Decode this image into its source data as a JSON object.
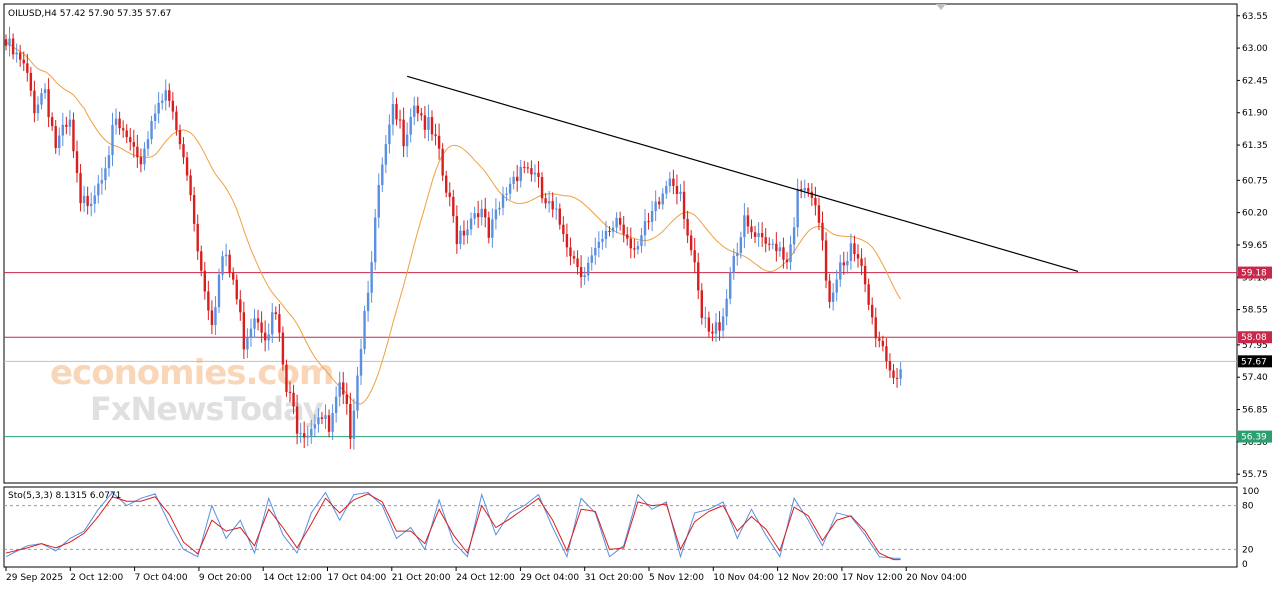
{
  "header": {
    "symbol_line": "OILUSD,H4  57.42 57.90 57.35 57.67"
  },
  "watermark": {
    "line1": "economies.com",
    "line2": "FxNewsToday"
  },
  "stochastic": {
    "label": "Sto(5,3,3) 8.1315 6.0771",
    "levels": [
      "100",
      "80",
      "20",
      "0"
    ]
  },
  "colors": {
    "bull": "#5b8fe0",
    "bear": "#d91e1e",
    "ma": "#f0a040",
    "trendline": "#000000",
    "resistance": "#c8284a",
    "support": "#2aa070",
    "stoch_main": "#5b8fe0",
    "stoch_signal": "#d91e1e",
    "current_price_tag": "#000000"
  },
  "chart_data": {
    "type": "candlestick",
    "symbol": "OILUSD",
    "timeframe": "H4",
    "price_axis": {
      "ticks": [
        "63.55",
        "63.00",
        "62.45",
        "61.90",
        "61.35",
        "60.75",
        "60.20",
        "59.65",
        "59.10",
        "58.55",
        "57.95",
        "57.40",
        "56.85",
        "56.30",
        "55.75"
      ],
      "ylim": [
        55.6,
        63.75
      ]
    },
    "time_axis": {
      "labels": [
        "29 Sep 2025",
        "2 Oct 12:00",
        "7 Oct 04:00",
        "9 Oct 20:00",
        "14 Oct 12:00",
        "17 Oct 04:00",
        "21 Oct 20:00",
        "24 Oct 12:00",
        "29 Oct 04:00",
        "31 Oct 20:00",
        "5 Nov 12:00",
        "10 Nov 04:00",
        "12 Nov 20:00",
        "17 Nov 12:00",
        "20 Nov 04:00"
      ]
    },
    "horizontal_lines": [
      {
        "price": 59.18,
        "label": "59.18",
        "role": "resistance"
      },
      {
        "price": 58.08,
        "label": "58.08",
        "role": "resistance"
      },
      {
        "price": 57.67,
        "label": "57.67",
        "role": "current"
      },
      {
        "price": 56.39,
        "label": "56.39",
        "role": "support"
      }
    ],
    "trendline": {
      "from": {
        "bar": 113,
        "price": 62.52
      },
      "to": {
        "bar": 302,
        "price": 59.2
      }
    },
    "close_path": [
      [
        0,
        63.1
      ],
      [
        5,
        62.7
      ],
      [
        8,
        62.1
      ],
      [
        11,
        62.4
      ],
      [
        14,
        61.4
      ],
      [
        18,
        61.7
      ],
      [
        21,
        60.3
      ],
      [
        25,
        60.7
      ],
      [
        28,
        61.2
      ],
      [
        31,
        61.7
      ],
      [
        34,
        61.5
      ],
      [
        37,
        61.0
      ],
      [
        40,
        61.6
      ],
      [
        43,
        62.3
      ],
      [
        46,
        62.1
      ],
      [
        49,
        61.4
      ],
      [
        52,
        60.6
      ],
      [
        55,
        59.3
      ],
      [
        58,
        58.5
      ],
      [
        61,
        59.5
      ],
      [
        64,
        59.1
      ],
      [
        67,
        58.1
      ],
      [
        70,
        58.6
      ],
      [
        73,
        58.3
      ],
      [
        76,
        58.5
      ],
      [
        79,
        57.2
      ],
      [
        82,
        56.7
      ],
      [
        85,
        56.6
      ],
      [
        88,
        56.9
      ],
      [
        91,
        56.5
      ],
      [
        94,
        57.2
      ],
      [
        97,
        56.6
      ],
      [
        100,
        58.1
      ],
      [
        103,
        59.6
      ],
      [
        106,
        61.0
      ],
      [
        109,
        61.9
      ],
      [
        112,
        61.6
      ],
      [
        115,
        62.2
      ],
      [
        118,
        61.8
      ],
      [
        121,
        61.4
      ],
      [
        124,
        60.6
      ],
      [
        127,
        59.9
      ],
      [
        130,
        60.1
      ],
      [
        133,
        60.4
      ],
      [
        136,
        59.8
      ],
      [
        139,
        60.3
      ],
      [
        142,
        60.8
      ],
      [
        145,
        61.1
      ],
      [
        148,
        61.0
      ],
      [
        151,
        60.5
      ],
      [
        154,
        60.2
      ],
      [
        157,
        60.0
      ],
      [
        160,
        59.5
      ],
      [
        163,
        59.3
      ],
      [
        166,
        59.5
      ],
      [
        169,
        59.8
      ],
      [
        172,
        60.2
      ],
      [
        175,
        59.9
      ],
      [
        178,
        59.7
      ],
      [
        181,
        60.0
      ],
      [
        184,
        60.4
      ],
      [
        187,
        60.9
      ],
      [
        190,
        60.7
      ],
      [
        193,
        59.6
      ],
      [
        196,
        58.4
      ],
      [
        199,
        58.1
      ],
      [
        202,
        58.6
      ],
      [
        205,
        59.6
      ],
      [
        208,
        60.0
      ],
      [
        211,
        59.8
      ],
      [
        214,
        59.6
      ],
      [
        217,
        59.8
      ],
      [
        220,
        59.5
      ],
      [
        223,
        60.5
      ],
      [
        226,
        60.6
      ],
      [
        229,
        60.0
      ],
      [
        232,
        58.8
      ],
      [
        235,
        59.5
      ],
      [
        238,
        59.6
      ],
      [
        241,
        59.2
      ],
      [
        244,
        58.4
      ],
      [
        247,
        58.0
      ],
      [
        250,
        57.5
      ],
      [
        252,
        57.67
      ]
    ],
    "stochastic_main_path": [
      [
        0,
        10
      ],
      [
        6,
        25
      ],
      [
        10,
        28
      ],
      [
        14,
        18
      ],
      [
        18,
        35
      ],
      [
        22,
        45
      ],
      [
        26,
        75
      ],
      [
        30,
        98
      ],
      [
        34,
        80
      ],
      [
        38,
        90
      ],
      [
        42,
        96
      ],
      [
        46,
        55
      ],
      [
        50,
        20
      ],
      [
        54,
        10
      ],
      [
        58,
        80
      ],
      [
        62,
        35
      ],
      [
        66,
        60
      ],
      [
        70,
        15
      ],
      [
        74,
        90
      ],
      [
        78,
        40
      ],
      [
        82,
        15
      ],
      [
        86,
        70
      ],
      [
        90,
        98
      ],
      [
        94,
        60
      ],
      [
        98,
        95
      ],
      [
        102,
        98
      ],
      [
        106,
        80
      ],
      [
        110,
        35
      ],
      [
        114,
        50
      ],
      [
        118,
        20
      ],
      [
        122,
        88
      ],
      [
        126,
        30
      ],
      [
        130,
        10
      ],
      [
        134,
        95
      ],
      [
        138,
        40
      ],
      [
        142,
        70
      ],
      [
        146,
        80
      ],
      [
        150,
        95
      ],
      [
        154,
        50
      ],
      [
        158,
        10
      ],
      [
        162,
        90
      ],
      [
        166,
        70
      ],
      [
        170,
        10
      ],
      [
        174,
        25
      ],
      [
        178,
        95
      ],
      [
        182,
        75
      ],
      [
        186,
        85
      ],
      [
        190,
        10
      ],
      [
        194,
        70
      ],
      [
        198,
        75
      ],
      [
        202,
        85
      ],
      [
        206,
        35
      ],
      [
        210,
        75
      ],
      [
        214,
        40
      ],
      [
        218,
        10
      ],
      [
        222,
        90
      ],
      [
        226,
        60
      ],
      [
        230,
        25
      ],
      [
        234,
        70
      ],
      [
        238,
        65
      ],
      [
        242,
        40
      ],
      [
        246,
        10
      ],
      [
        250,
        8
      ],
      [
        252,
        8
      ]
    ],
    "stochastic_signal_path": [
      [
        0,
        15
      ],
      [
        6,
        22
      ],
      [
        10,
        28
      ],
      [
        14,
        22
      ],
      [
        18,
        30
      ],
      [
        22,
        42
      ],
      [
        26,
        65
      ],
      [
        30,
        92
      ],
      [
        34,
        86
      ],
      [
        38,
        86
      ],
      [
        42,
        92
      ],
      [
        46,
        68
      ],
      [
        50,
        30
      ],
      [
        54,
        14
      ],
      [
        58,
        60
      ],
      [
        62,
        45
      ],
      [
        66,
        50
      ],
      [
        70,
        25
      ],
      [
        74,
        75
      ],
      [
        78,
        50
      ],
      [
        82,
        22
      ],
      [
        86,
        55
      ],
      [
        90,
        90
      ],
      [
        94,
        70
      ],
      [
        98,
        88
      ],
      [
        102,
        96
      ],
      [
        106,
        85
      ],
      [
        110,
        45
      ],
      [
        114,
        45
      ],
      [
        118,
        28
      ],
      [
        122,
        75
      ],
      [
        126,
        40
      ],
      [
        130,
        15
      ],
      [
        134,
        80
      ],
      [
        138,
        50
      ],
      [
        142,
        62
      ],
      [
        146,
        76
      ],
      [
        150,
        90
      ],
      [
        154,
        60
      ],
      [
        158,
        18
      ],
      [
        162,
        75
      ],
      [
        166,
        72
      ],
      [
        170,
        20
      ],
      [
        174,
        22
      ],
      [
        178,
        85
      ],
      [
        182,
        80
      ],
      [
        186,
        82
      ],
      [
        190,
        20
      ],
      [
        194,
        58
      ],
      [
        198,
        72
      ],
      [
        202,
        80
      ],
      [
        206,
        45
      ],
      [
        210,
        65
      ],
      [
        214,
        48
      ],
      [
        218,
        18
      ],
      [
        222,
        78
      ],
      [
        226,
        66
      ],
      [
        230,
        32
      ],
      [
        234,
        60
      ],
      [
        238,
        66
      ],
      [
        242,
        45
      ],
      [
        246,
        15
      ],
      [
        250,
        6
      ],
      [
        252,
        6
      ]
    ]
  }
}
